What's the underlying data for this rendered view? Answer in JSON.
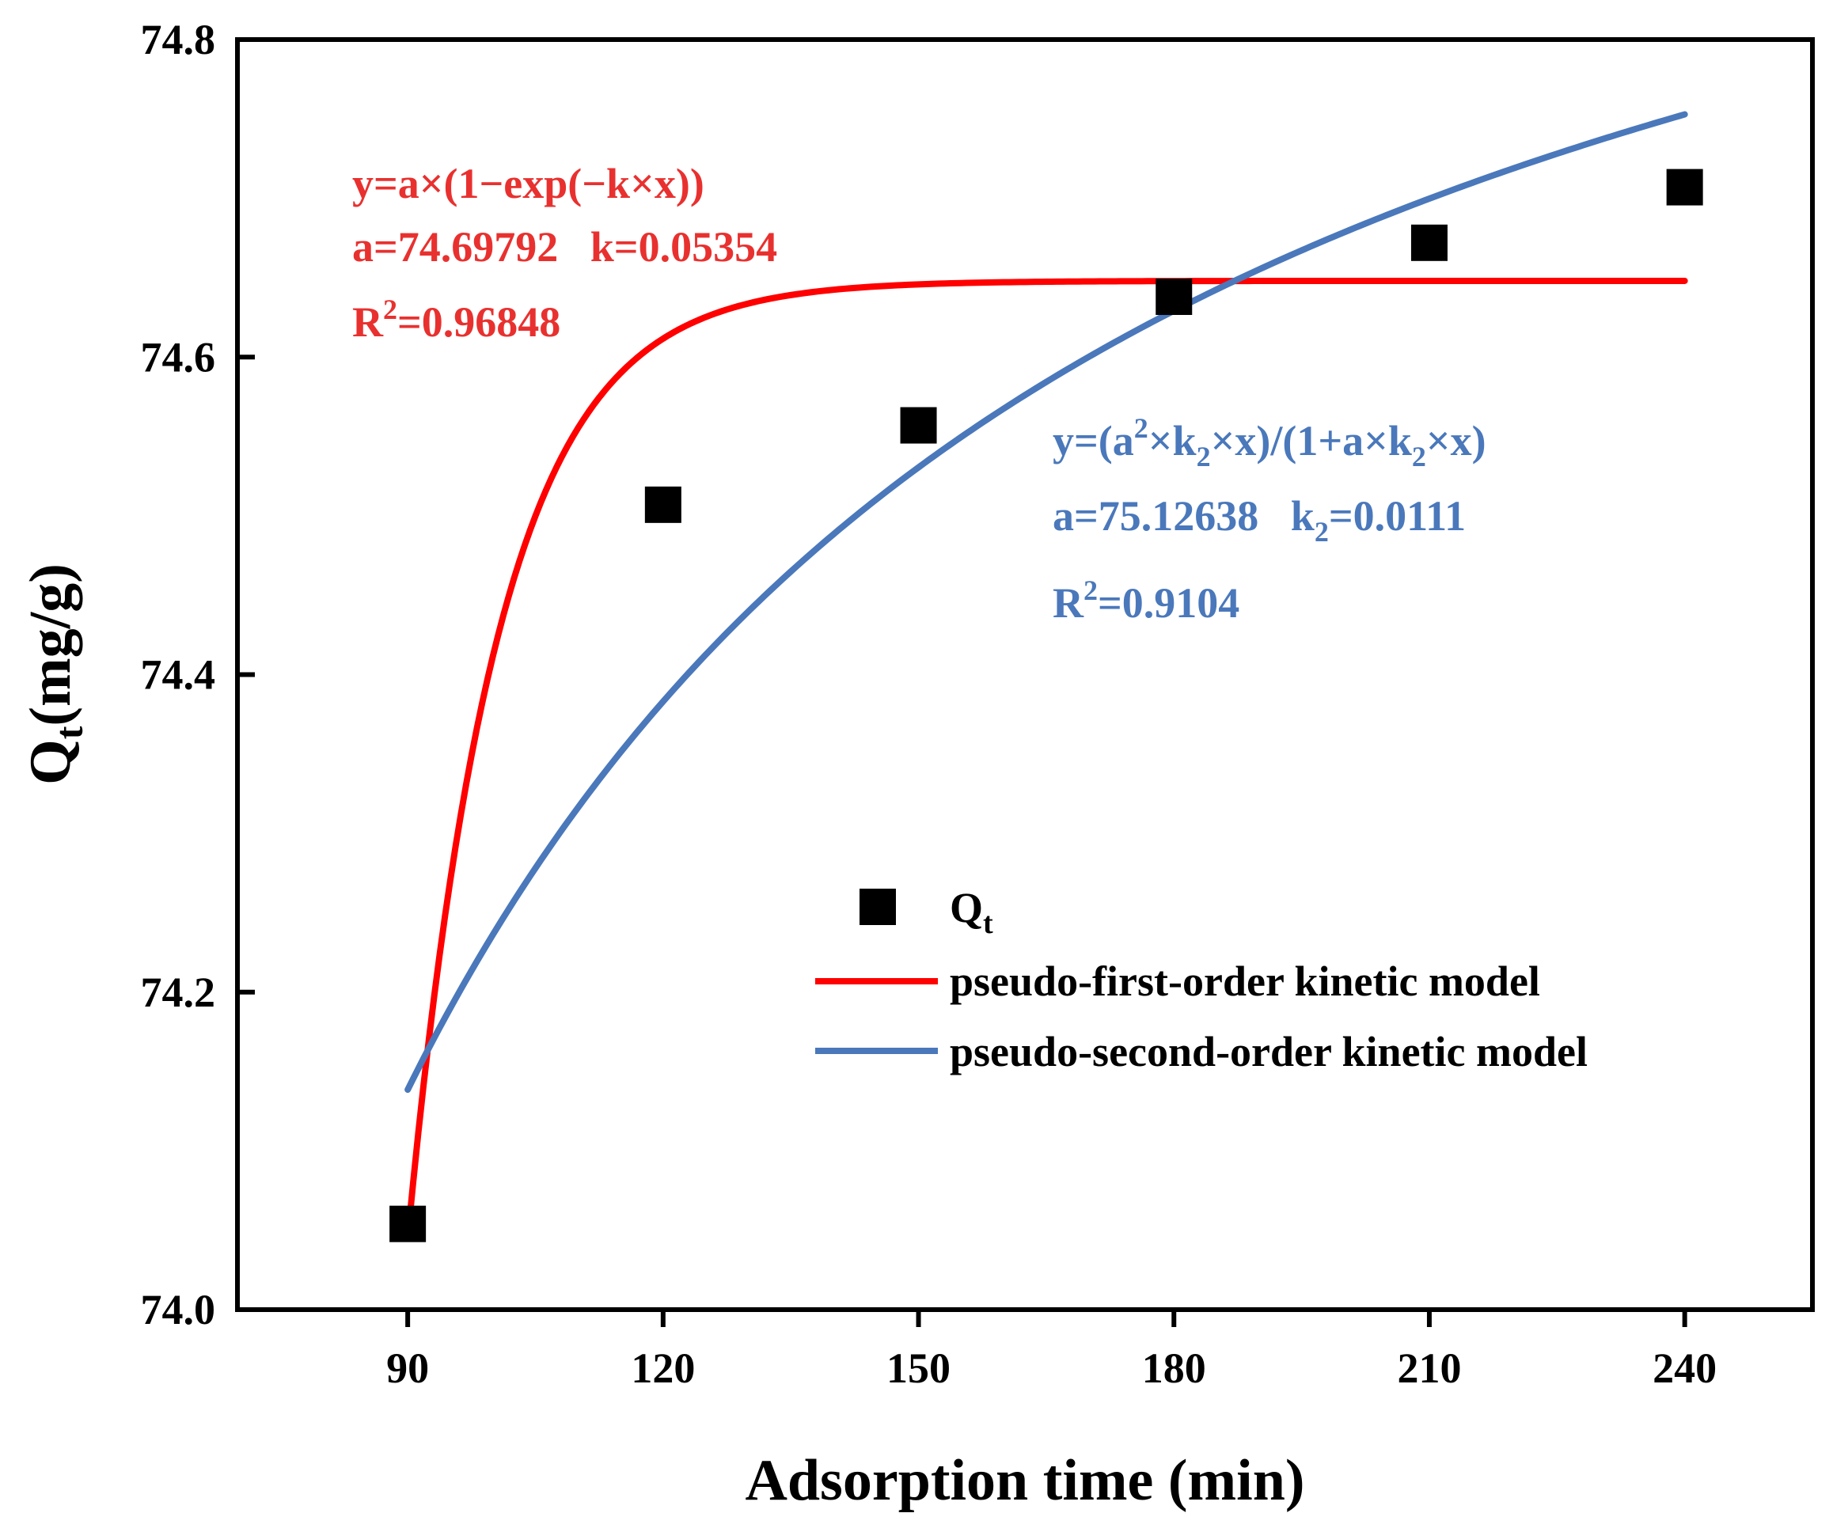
{
  "chart_data": {
    "type": "scatter",
    "xlabel": "Adsorption time (min)",
    "ylabel": {
      "main": "Q",
      "sub": "t",
      "unit": "(mg/g)"
    },
    "xlim": [
      70,
      255
    ],
    "ylim": [
      74.0,
      74.8
    ],
    "x_ticks": [
      90,
      120,
      150,
      180,
      210,
      240
    ],
    "x_tick_labels": [
      "90",
      "120",
      "150",
      "180",
      "210",
      "240"
    ],
    "y_ticks": [
      74.0,
      74.2,
      74.4,
      74.6,
      74.8
    ],
    "y_tick_labels": [
      "74.0",
      "74.2",
      "74.4",
      "74.6",
      "74.8"
    ],
    "grid": false,
    "series": [
      {
        "name": "Q",
        "name_sub": "t",
        "kind": "scatter",
        "marker": "square",
        "color": "#000000",
        "x": [
          90,
          120,
          150,
          180,
          210,
          240
        ],
        "y": [
          74.054,
          74.507,
          74.557,
          74.638,
          74.672,
          74.707
        ]
      },
      {
        "name": "pseudo-first-order kinetic model",
        "kind": "line",
        "color": "#ff0000",
        "model": "pfo",
        "x_range": [
          90,
          240
        ],
        "params": {
          "asymptote": 74.648,
          "y0": 74.045,
          "k": 0.0936
        }
      },
      {
        "name": "pseudo-second-order kinetic model",
        "kind": "line",
        "color": "#4a78bb",
        "model": "pso",
        "x_range": [
          90,
          240
        ],
        "params": {
          "a": 75.12638,
          "k2": 0.0111
        }
      }
    ],
    "legend": {
      "position": "lower-right"
    },
    "annotations": {
      "red": {
        "color": "#e8312f",
        "equation": "y=a×(1−exp(−k×x))",
        "params_line": "a=74.69792   k=0.05354",
        "r2_prefix": "R",
        "r2_sup": "2",
        "r2_value": "=0.96848"
      },
      "blue": {
        "color": "#4a78bb",
        "eq_part1": "y=(a",
        "eq_sup": "2",
        "eq_part2": "×k",
        "eq_sub1": "2",
        "eq_part3": "×x)/(1+a×k",
        "eq_sub2": "2",
        "eq_part4": "×x)",
        "params_a": "a=75.12638   k",
        "params_sub": "2",
        "params_k": "=0.0111",
        "r2_prefix": "R",
        "r2_sup": "2",
        "r2_value": "=0.9104"
      }
    }
  }
}
